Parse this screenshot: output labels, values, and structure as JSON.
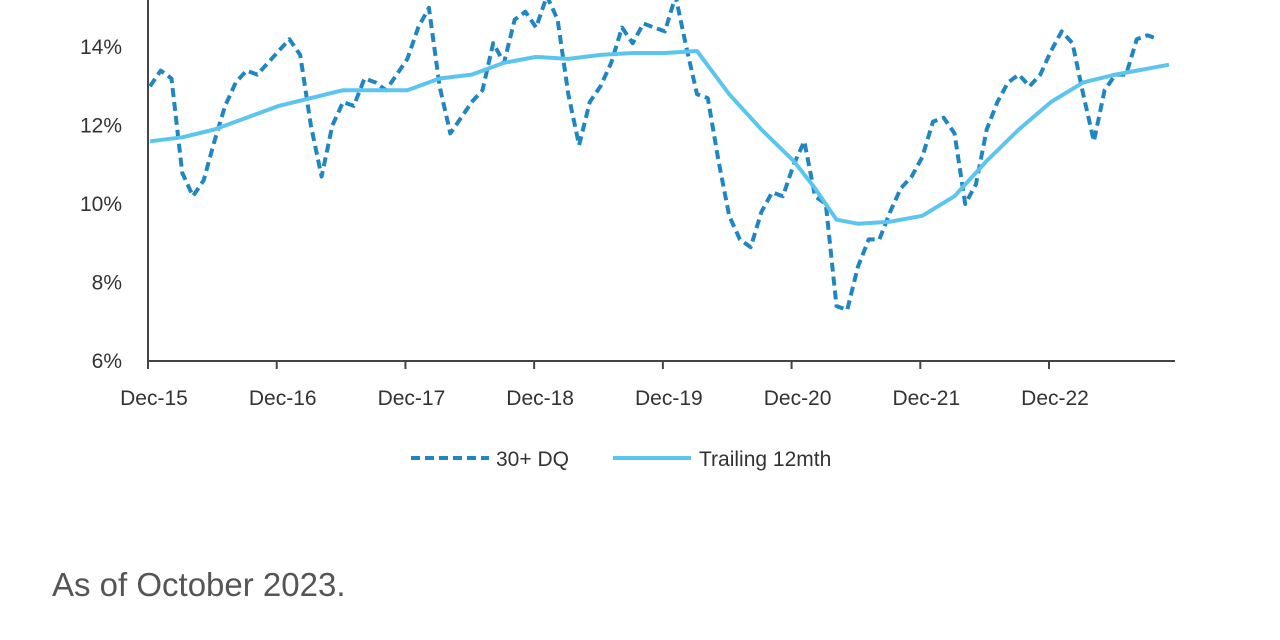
{
  "chart_data": {
    "type": "line",
    "ylim": [
      6,
      15.2
    ],
    "y_ticks": [
      6,
      8,
      10,
      12,
      14
    ],
    "y_tick_labels": [
      "6%",
      "8%",
      "10%",
      "12%",
      "14%"
    ],
    "x_tick_positions": [
      0,
      12,
      24,
      36,
      48,
      60,
      72,
      84
    ],
    "x_tick_labels": [
      "Dec-15",
      "Dec-16",
      "Dec-17",
      "Dec-18",
      "Dec-19",
      "Dec-20",
      "Dec-21",
      "Dec-22"
    ],
    "xlim": [
      0,
      95
    ],
    "grid": false,
    "legend_placement": "bottom-center",
    "series": [
      {
        "name": "30+ DQ",
        "style": "dashed",
        "color": "#1f86c2",
        "x": [
          0,
          1,
          2,
          3,
          4,
          5,
          6,
          7,
          8,
          9,
          10,
          11,
          12,
          13,
          14,
          15,
          16,
          17,
          18,
          19,
          20,
          21,
          22,
          23,
          24,
          25,
          26,
          27,
          28,
          29,
          30,
          31,
          32,
          33,
          34,
          35,
          36,
          37,
          38,
          39,
          40,
          41,
          42,
          43,
          44,
          45,
          46,
          47,
          48,
          49,
          50,
          51,
          52,
          53,
          54,
          55,
          56,
          57,
          58,
          59,
          60,
          61,
          62,
          63,
          64,
          65,
          66,
          67,
          68,
          69,
          70,
          71,
          72,
          73,
          74,
          75,
          76,
          77,
          78,
          79,
          80,
          81,
          82,
          83,
          84,
          85,
          86,
          87,
          88,
          89,
          90,
          91,
          92,
          93,
          94
        ],
        "values": [
          13.0,
          13.4,
          13.2,
          10.8,
          10.2,
          10.6,
          11.6,
          12.5,
          13.1,
          13.4,
          13.3,
          13.6,
          13.9,
          14.2,
          13.8,
          12.0,
          10.7,
          12.0,
          12.6,
          12.5,
          13.2,
          13.1,
          12.9,
          13.3,
          13.7,
          14.5,
          15.0,
          13.0,
          11.8,
          12.2,
          12.6,
          12.9,
          14.1,
          13.6,
          14.7,
          14.9,
          14.5,
          15.3,
          14.7,
          12.8,
          11.5,
          12.6,
          13.0,
          13.6,
          14.5,
          14.1,
          14.6,
          14.5,
          14.4,
          15.3,
          14.0,
          12.8,
          12.7,
          11.1,
          9.7,
          9.1,
          8.9,
          9.8,
          10.3,
          10.2,
          11.0,
          11.6,
          10.2,
          10.0,
          7.4,
          7.3,
          8.4,
          9.1,
          9.1,
          9.8,
          10.4,
          10.7,
          11.2,
          12.1,
          12.2,
          11.8,
          10.0,
          10.5,
          11.9,
          12.6,
          13.1,
          13.3,
          13.0,
          13.3,
          13.9,
          14.4,
          14.1,
          12.8,
          11.6,
          12.9,
          13.3,
          13.3,
          14.2,
          14.3,
          14.2
        ]
      },
      {
        "name": "Trailing 12mth",
        "style": "solid",
        "color": "#5bc5ef",
        "x": [
          0,
          3,
          6,
          9,
          12,
          15,
          18,
          21,
          24,
          27,
          30,
          33,
          36,
          39,
          42,
          45,
          48,
          51,
          54,
          57,
          60,
          62,
          64,
          66,
          69,
          72,
          75,
          78,
          81,
          84,
          87,
          90,
          95
        ],
        "values": [
          11.6,
          11.7,
          11.9,
          12.2,
          12.5,
          12.7,
          12.9,
          12.9,
          12.9,
          13.2,
          13.3,
          13.6,
          13.75,
          13.7,
          13.8,
          13.85,
          13.85,
          13.9,
          12.8,
          11.9,
          11.1,
          10.4,
          9.6,
          9.5,
          9.55,
          9.7,
          10.2,
          11.1,
          11.9,
          12.6,
          13.1,
          13.3,
          13.55
        ]
      }
    ]
  },
  "legend": {
    "items": [
      {
        "label": "30+ DQ",
        "style": "dashed",
        "color": "#1f86c2"
      },
      {
        "label": "Trailing 12mth",
        "style": "solid",
        "color": "#5bc5ef"
      }
    ]
  },
  "caption": "As of October 2023.",
  "colors": {
    "axis": "#444444",
    "text": "#333333",
    "caption": "#555555"
  }
}
